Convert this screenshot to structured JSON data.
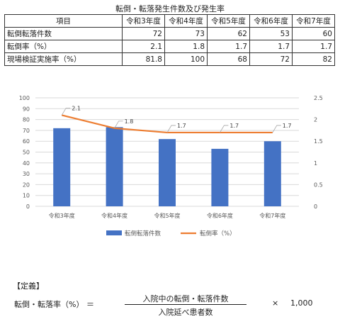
{
  "title": "転倒・転落発生件数及び発生率",
  "table": {
    "header": [
      "項目",
      "令和3年度",
      "令和4年度",
      "令和5年度",
      "令和6年度",
      "令和7年度"
    ],
    "rows": [
      [
        "転倒転落件数",
        "72",
        "73",
        "62",
        "53",
        "60"
      ],
      [
        "転倒率（%）",
        "2.1",
        "1.8",
        "1.7",
        "1.7",
        "1.7"
      ],
      [
        "現場検証実施率（%）",
        "81.8",
        "100",
        "68",
        "72",
        "82"
      ]
    ]
  },
  "chart_data": {
    "type": "bar",
    "categories": [
      "令和3年度",
      "令和4年度",
      "令和5年度",
      "令和6年度",
      "令和7年度"
    ],
    "series": [
      {
        "name": "転倒転落件数",
        "type": "bar",
        "axis": "left",
        "values": [
          72,
          73,
          62,
          53,
          60
        ],
        "color": "#4472C4"
      },
      {
        "name": "転倒率（%）",
        "type": "line",
        "axis": "right",
        "values": [
          2.1,
          1.8,
          1.7,
          1.7,
          1.7
        ],
        "data_labels": [
          "2.1",
          "1.8",
          "1.7",
          "1.7",
          "1.7"
        ],
        "color": "#ED7D31"
      }
    ],
    "y_left": {
      "min": 0,
      "max": 100,
      "ticks": [
        "0",
        "10",
        "20",
        "30",
        "40",
        "50",
        "60",
        "70",
        "80",
        "90",
        "100"
      ]
    },
    "y_right": {
      "min": 0,
      "max": 2.5,
      "ticks": [
        "0",
        "0.5",
        "1",
        "1.5",
        "2",
        "2.5"
      ]
    },
    "grid": true,
    "legend_position": "bottom"
  },
  "definition": {
    "label": "【定義】",
    "lhs": "転倒・転落率（%） ＝",
    "numerator": "入院中の転倒・転落件数",
    "denominator": "入院延べ患者数",
    "times": "×",
    "multiplier": "1,000"
  }
}
